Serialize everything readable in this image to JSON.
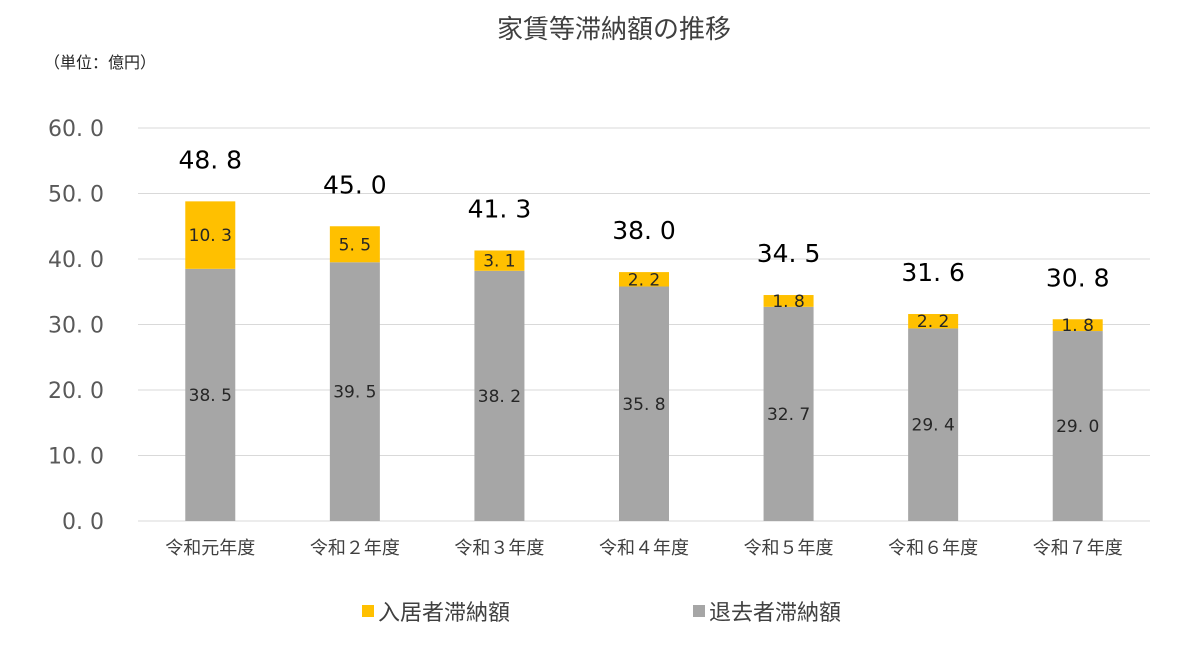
{
  "chart_data": {
    "type": "bar",
    "stacked": true,
    "title": "家賃等滞納額の推移",
    "unit_label": "（単位：億円）",
    "categories": [
      "令和元年度",
      "令和２年度",
      "令和３年度",
      "令和４年度",
      "令和５年度",
      "令和６年度",
      "令和７年度"
    ],
    "series": [
      {
        "name": "退去者滞納額",
        "color": "#a6a6a6",
        "values": [
          38.5,
          39.5,
          38.2,
          35.8,
          32.7,
          29.4,
          29.0
        ],
        "labels": [
          "38. 5",
          "39. 5",
          "38. 2",
          "35. 8",
          "32. 7",
          "29. 4",
          "29. 0"
        ]
      },
      {
        "name": "入居者滞納額",
        "color": "#ffc000",
        "values": [
          10.3,
          5.5,
          3.1,
          2.2,
          1.8,
          2.2,
          1.8
        ],
        "labels": [
          "10. 3",
          "5. 5",
          "3. 1",
          "2. 2",
          "1. 8",
          "2. 2",
          "1. 8"
        ]
      }
    ],
    "totals": [
      48.8,
      45.0,
      41.3,
      38.0,
      34.5,
      31.6,
      30.8
    ],
    "total_labels": [
      "48. 8",
      "45. 0",
      "41. 3",
      "38. 0",
      "34. 5",
      "31. 6",
      "30. 8"
    ],
    "ylim": [
      0,
      60
    ],
    "yticks": [
      0,
      10,
      20,
      30,
      40,
      50,
      60
    ],
    "ytick_labels": [
      "0. 0",
      "10. 0",
      "20. 0",
      "30. 0",
      "40. 0",
      "50. 0",
      "60. 0"
    ],
    "grid": true,
    "gridline_color": "#d9d9d9",
    "legend_position": "bottom",
    "legend_order": [
      "入居者滞納額",
      "退去者滞納額"
    ]
  }
}
